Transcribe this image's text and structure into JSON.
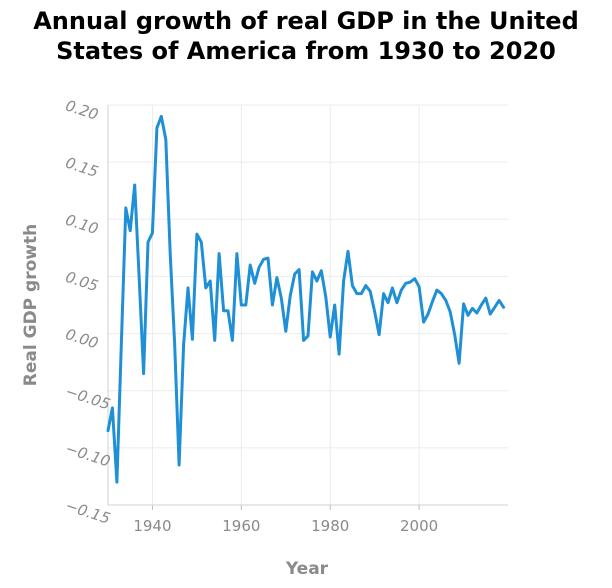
{
  "chart_data": {
    "type": "line",
    "title_lines": [
      "Annual growth of real GDP in the United",
      "States of America from 1930 to 2020"
    ],
    "xlabel": "Year",
    "ylabel": "Real GDP growth",
    "xlim": [
      1930,
      2020
    ],
    "ylim": [
      -0.15,
      0.2
    ],
    "xticks": [
      1940,
      1960,
      1980,
      2000
    ],
    "xtick_labels": [
      "1940",
      "1960",
      "1980",
      "2000"
    ],
    "yticks": [
      -0.15,
      -0.1,
      -0.05,
      0.0,
      0.05,
      0.1,
      0.15,
      0.2
    ],
    "ytick_labels": [
      "−0.15",
      "−0.10",
      "−0.05",
      "0.00",
      "0.05",
      "0.10",
      "0.15",
      "0.20"
    ],
    "grid": true,
    "line_color": "#1f8fd6",
    "x": [
      1930,
      1931,
      1932,
      1933,
      1934,
      1935,
      1936,
      1937,
      1938,
      1939,
      1940,
      1941,
      1942,
      1943,
      1944,
      1945,
      1946,
      1947,
      1948,
      1949,
      1950,
      1951,
      1952,
      1953,
      1954,
      1955,
      1956,
      1957,
      1958,
      1959,
      1960,
      1961,
      1962,
      1963,
      1964,
      1965,
      1966,
      1967,
      1968,
      1969,
      1970,
      1971,
      1972,
      1973,
      1974,
      1975,
      1976,
      1977,
      1978,
      1979,
      1980,
      1981,
      1982,
      1983,
      1984,
      1985,
      1986,
      1987,
      1988,
      1989,
      1990,
      1991,
      1992,
      1993,
      1994,
      1995,
      1996,
      1997,
      1998,
      1999,
      2000,
      2001,
      2002,
      2003,
      2004,
      2005,
      2006,
      2007,
      2008,
      2009,
      2010,
      2011,
      2012,
      2013,
      2014,
      2015,
      2016,
      2017,
      2018,
      2019
    ],
    "y": [
      -0.085,
      -0.065,
      -0.13,
      -0.01,
      0.11,
      0.09,
      0.13,
      0.05,
      -0.035,
      0.08,
      0.088,
      0.18,
      0.19,
      0.17,
      0.07,
      -0.01,
      -0.115,
      -0.01,
      0.04,
      -0.005,
      0.087,
      0.08,
      0.04,
      0.046,
      -0.006,
      0.07,
      0.02,
      0.02,
      -0.006,
      0.07,
      0.025,
      0.025,
      0.06,
      0.044,
      0.058,
      0.065,
      0.066,
      0.025,
      0.049,
      0.031,
      0.002,
      0.033,
      0.052,
      0.056,
      -0.006,
      -0.002,
      0.054,
      0.046,
      0.055,
      0.032,
      -0.003,
      0.025,
      -0.018,
      0.046,
      0.072,
      0.042,
      0.035,
      0.035,
      0.042,
      0.037,
      0.019,
      -0.001,
      0.035,
      0.027,
      0.04,
      0.027,
      0.038,
      0.044,
      0.045,
      0.048,
      0.041,
      0.01,
      0.017,
      0.028,
      0.038,
      0.035,
      0.029,
      0.019,
      -0.001,
      -0.026,
      0.026,
      0.016,
      0.022,
      0.018,
      0.025,
      0.031,
      0.017,
      0.023,
      0.029,
      0.023
    ]
  }
}
